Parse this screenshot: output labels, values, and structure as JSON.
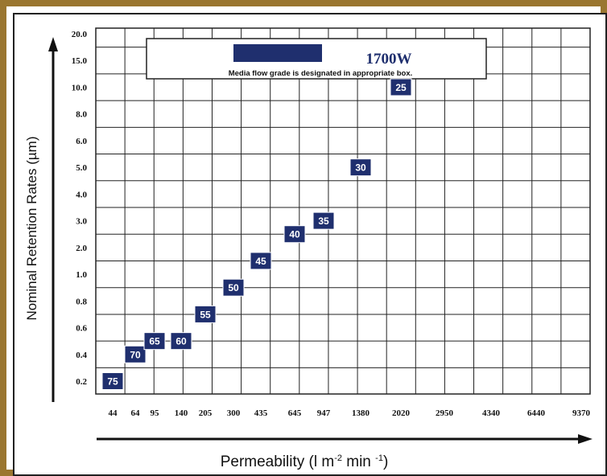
{
  "colors": {
    "frame": "#9a7630",
    "marker": "#1f2f6e",
    "marker_text": "#ffffff",
    "grid": "#222222",
    "arrow": "#111111",
    "model_label": "#1f2f6e"
  },
  "legend": {
    "model": "1700W",
    "note": "Media flow grade is designated in appropriate box."
  },
  "chart_data": {
    "type": "scatter",
    "xlabel_main": "Permeability (l m",
    "xlabel_sup1": "-2",
    "xlabel_mid": " min ",
    "xlabel_sup2": "-1",
    "xlabel_end": ")",
    "ylabel": "Nominal Retention Rates (µm)",
    "x_ticks": [
      "44",
      "64",
      "95",
      "140",
      "205",
      "300",
      "435",
      "645",
      "947",
      "1380",
      "2020",
      "2950",
      "4340",
      "6440",
      "9370"
    ],
    "y_ticks": [
      "0.2",
      "0.4",
      "0.6",
      "0.8",
      "1.0",
      "2.0",
      "3.0",
      "4.0",
      "5.0",
      "6.0",
      "8.0",
      "10.0",
      "15.0",
      "20.0"
    ],
    "points": [
      {
        "grade": "75",
        "x": "44",
        "y": "0.2"
      },
      {
        "grade": "70",
        "x": "64",
        "y": "0.4"
      },
      {
        "grade": "65",
        "x": "95",
        "y": "0.5"
      },
      {
        "grade": "60",
        "x": "140",
        "y": "0.5"
      },
      {
        "grade": "55",
        "x": "205",
        "y": "0.7"
      },
      {
        "grade": "50",
        "x": "300",
        "y": "0.9"
      },
      {
        "grade": "45",
        "x": "435",
        "y": "1.5"
      },
      {
        "grade": "40",
        "x": "645",
        "y": "2.5"
      },
      {
        "grade": "35",
        "x": "947",
        "y": "3.0"
      },
      {
        "grade": "30",
        "x": "1380",
        "y": "5.0"
      },
      {
        "grade": "25",
        "x": "2020",
        "y": "10.0"
      }
    ]
  }
}
